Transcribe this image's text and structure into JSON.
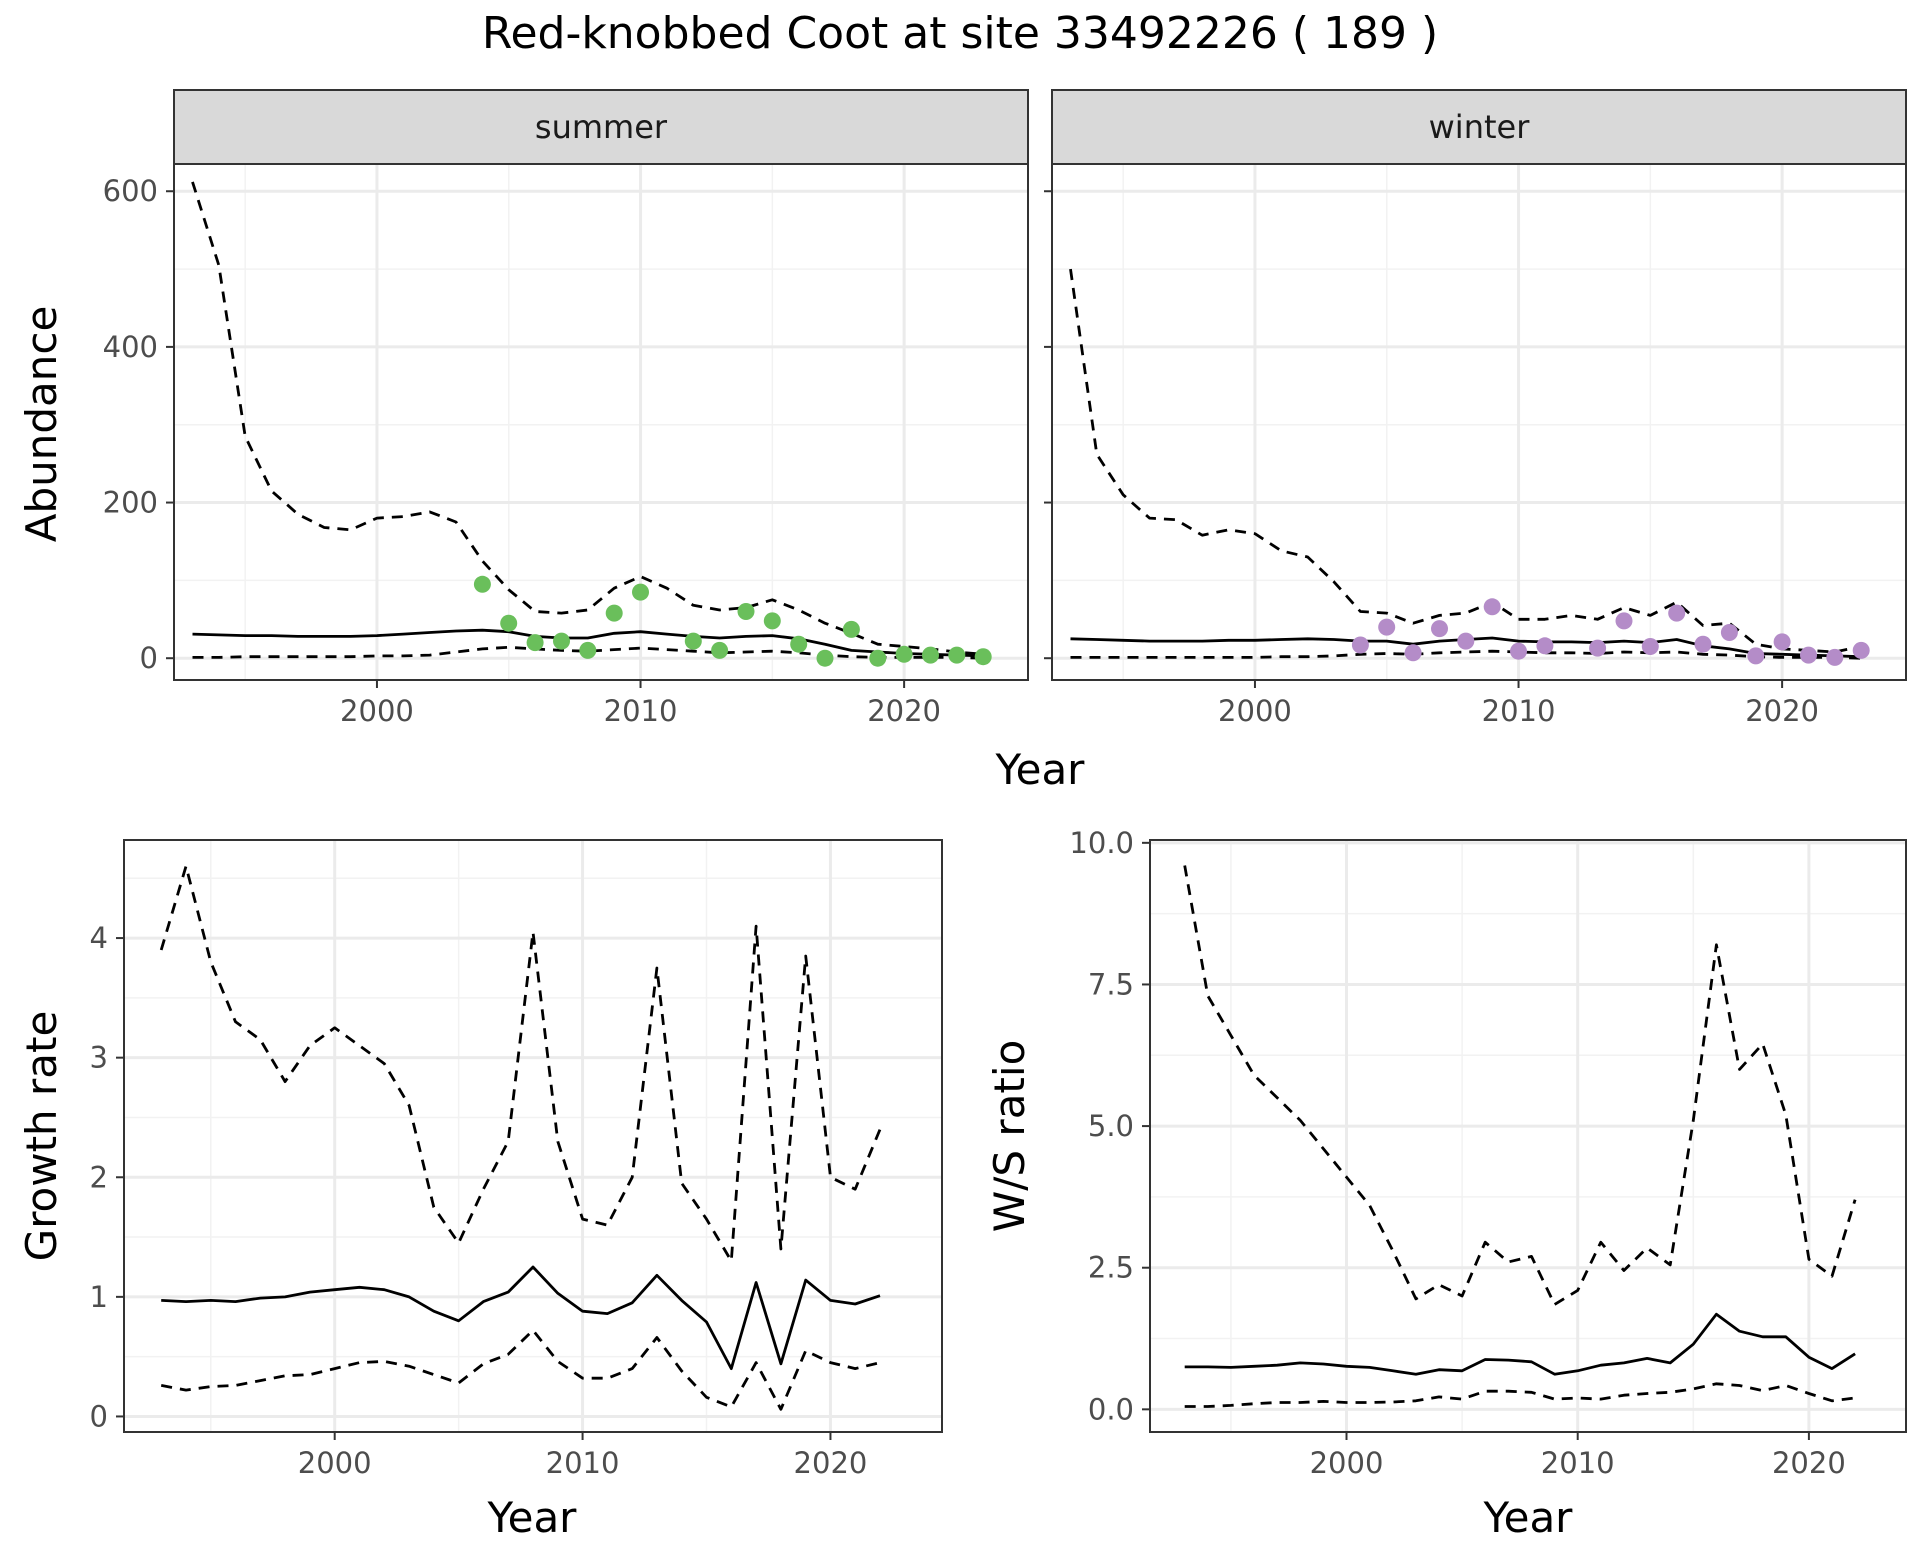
{
  "title": "Red-knobbed Coot at site 33492226 ( 189 )",
  "colors": {
    "summer_points": "#6ABF5B",
    "winter_points": "#B48CC8",
    "lines": "#000000",
    "grid_major": "#EBEBEB",
    "grid_minor": "#F2F2F2",
    "strip_bg": "#D9D9D9"
  },
  "chart_data": [
    {
      "type": "line",
      "panel": "summer",
      "facet_label": "summer",
      "xlabel": "Year",
      "ylabel": "Abundance",
      "xlim": [
        1992.3,
        2024.7
      ],
      "ylim": [
        -28,
        635
      ],
      "xticks": [
        2000,
        2010,
        2020
      ],
      "yticks": [
        0,
        200,
        400,
        600
      ],
      "grid": true,
      "x": [
        1993,
        1994,
        1995,
        1996,
        1997,
        1998,
        1999,
        2000,
        2001,
        2002,
        2003,
        2004,
        2005,
        2006,
        2007,
        2008,
        2009,
        2010,
        2011,
        2012,
        2013,
        2014,
        2015,
        2016,
        2017,
        2018,
        2019,
        2020,
        2021,
        2022,
        2023
      ],
      "series": [
        {
          "style": "dashed",
          "values": [
            612,
            505,
            285,
            215,
            185,
            168,
            165,
            180,
            182,
            188,
            175,
            125,
            88,
            60,
            58,
            62,
            90,
            105,
            90,
            68,
            62,
            65,
            75,
            62,
            45,
            32,
            18,
            15,
            12,
            8,
            5
          ]
        },
        {
          "style": "solid",
          "values": [
            31,
            30,
            29,
            29,
            28,
            28,
            28,
            29,
            31,
            33,
            35,
            36,
            34,
            28,
            26,
            26,
            32,
            34,
            31,
            28,
            26,
            28,
            29,
            25,
            18,
            10,
            8,
            6,
            5,
            4,
            3
          ]
        },
        {
          "style": "dashed",
          "values": [
            1,
            1,
            2,
            2,
            2,
            2,
            2,
            3,
            3,
            4,
            8,
            12,
            14,
            12,
            10,
            9,
            11,
            13,
            11,
            9,
            7,
            8,
            9,
            7,
            4,
            2,
            1,
            1,
            1,
            1,
            0
          ]
        }
      ],
      "points": {
        "x": [
          2004,
          2005,
          2006,
          2007,
          2008,
          2009,
          2010,
          2012,
          2013,
          2014,
          2015,
          2016,
          2017,
          2018,
          2019,
          2020,
          2021,
          2022,
          2023
        ],
        "y": [
          95,
          45,
          20,
          22,
          10,
          58,
          85,
          22,
          10,
          60,
          48,
          18,
          0,
          37,
          0,
          5,
          4,
          4,
          2
        ]
      }
    },
    {
      "type": "line",
      "panel": "winter",
      "facet_label": "winter",
      "xlabel": "Year",
      "ylabel": "Abundance",
      "xlim": [
        1992.3,
        2024.7
      ],
      "ylim": [
        -28,
        635
      ],
      "xticks": [
        2000,
        2010,
        2020
      ],
      "yticks": [
        0,
        200,
        400,
        600
      ],
      "grid": true,
      "x": [
        1993,
        1994,
        1995,
        1996,
        1997,
        1998,
        1999,
        2000,
        2001,
        2002,
        2003,
        2004,
        2005,
        2006,
        2007,
        2008,
        2009,
        2010,
        2011,
        2012,
        2013,
        2014,
        2015,
        2016,
        2017,
        2018,
        2019,
        2020,
        2021,
        2022,
        2023
      ],
      "series": [
        {
          "style": "dashed",
          "values": [
            500,
            262,
            210,
            180,
            178,
            158,
            165,
            160,
            138,
            130,
            98,
            60,
            58,
            45,
            55,
            58,
            72,
            50,
            50,
            55,
            50,
            65,
            55,
            72,
            42,
            45,
            18,
            12,
            10,
            8,
            15
          ]
        },
        {
          "style": "solid",
          "values": [
            25,
            24,
            23,
            22,
            22,
            22,
            23,
            23,
            24,
            25,
            24,
            22,
            22,
            18,
            22,
            24,
            26,
            22,
            21,
            21,
            20,
            22,
            20,
            24,
            16,
            12,
            6,
            5,
            4,
            3,
            2
          ]
        },
        {
          "style": "dashed",
          "values": [
            1,
            1,
            1,
            1,
            1,
            1,
            1,
            1,
            2,
            2,
            3,
            5,
            6,
            5,
            7,
            8,
            9,
            8,
            7,
            7,
            6,
            8,
            7,
            8,
            5,
            4,
            2,
            1,
            1,
            1,
            0
          ]
        }
      ],
      "points": {
        "x": [
          2004,
          2005,
          2006,
          2007,
          2008,
          2009,
          2010,
          2011,
          2013,
          2014,
          2015,
          2016,
          2017,
          2018,
          2019,
          2020,
          2021,
          2022,
          2023
        ],
        "y": [
          17,
          40,
          7,
          38,
          22,
          66,
          9,
          16,
          13,
          48,
          15,
          58,
          18,
          33,
          3,
          21,
          4,
          1,
          10
        ]
      }
    },
    {
      "type": "line",
      "panel": "growth",
      "xlabel": "Year",
      "ylabel": "Growth rate",
      "xlim": [
        1991.5,
        2024.5
      ],
      "ylim": [
        -0.13,
        4.82
      ],
      "xticks": [
        2000,
        2010,
        2020
      ],
      "yticks": [
        0,
        1,
        2,
        3,
        4
      ],
      "grid": true,
      "x": [
        1993,
        1994,
        1995,
        1996,
        1997,
        1998,
        1999,
        2000,
        2001,
        2002,
        2003,
        2004,
        2005,
        2006,
        2007,
        2008,
        2009,
        2010,
        2011,
        2012,
        2013,
        2014,
        2015,
        2016,
        2017,
        2018,
        2019,
        2020,
        2021,
        2022
      ],
      "series": [
        {
          "style": "dashed",
          "values": [
            3.9,
            4.6,
            3.8,
            3.3,
            3.15,
            2.8,
            3.1,
            3.25,
            3.1,
            2.95,
            2.6,
            1.75,
            1.45,
            1.9,
            2.3,
            4.05,
            2.3,
            1.65,
            1.6,
            2.0,
            3.75,
            1.95,
            1.65,
            1.3,
            4.1,
            1.4,
            3.85,
            2.0,
            1.9,
            2.4
          ]
        },
        {
          "style": "solid",
          "values": [
            0.97,
            0.96,
            0.97,
            0.96,
            0.99,
            1.0,
            1.04,
            1.06,
            1.08,
            1.06,
            1.0,
            0.88,
            0.8,
            0.96,
            1.04,
            1.25,
            1.03,
            0.88,
            0.86,
            0.95,
            1.18,
            0.97,
            0.79,
            0.4,
            1.12,
            0.44,
            1.14,
            0.97,
            0.94,
            1.01
          ]
        },
        {
          "style": "dashed",
          "values": [
            0.26,
            0.22,
            0.25,
            0.26,
            0.3,
            0.34,
            0.35,
            0.4,
            0.45,
            0.46,
            0.42,
            0.35,
            0.28,
            0.44,
            0.52,
            0.72,
            0.46,
            0.32,
            0.32,
            0.4,
            0.66,
            0.38,
            0.16,
            0.08,
            0.45,
            0.06,
            0.55,
            0.45,
            0.4,
            0.45
          ]
        }
      ]
    },
    {
      "type": "line",
      "panel": "ws_ratio",
      "xlabel": "Year",
      "ylabel": "W/S ratio",
      "xlim": [
        1991.5,
        2024.2
      ],
      "ylim": [
        -0.4,
        10.05
      ],
      "xticks": [
        2000,
        2010,
        2020
      ],
      "yticks": [
        0.0,
        2.5,
        5.0,
        7.5,
        10.0
      ],
      "ytick_labels": [
        "0.0",
        "2.5",
        "5.0",
        "7.5",
        "10.0"
      ],
      "grid": true,
      "x": [
        1993,
        1994,
        1995,
        1996,
        1997,
        1998,
        1999,
        2000,
        2001,
        2002,
        2003,
        2004,
        2005,
        2006,
        2007,
        2008,
        2009,
        2010,
        2011,
        2012,
        2013,
        2014,
        2015,
        2016,
        2017,
        2018,
        2019,
        2020,
        2021,
        2022
      ],
      "series": [
        {
          "style": "dashed",
          "values": [
            9.6,
            7.3,
            6.6,
            5.9,
            5.5,
            5.1,
            4.6,
            4.1,
            3.6,
            2.8,
            1.95,
            2.2,
            2.0,
            2.95,
            2.6,
            2.7,
            1.85,
            2.1,
            2.95,
            2.45,
            2.85,
            2.55,
            5.1,
            8.2,
            6.0,
            6.45,
            5.2,
            2.65,
            2.35,
            3.7
          ]
        },
        {
          "style": "solid",
          "values": [
            0.75,
            0.75,
            0.74,
            0.76,
            0.78,
            0.82,
            0.8,
            0.76,
            0.74,
            0.68,
            0.62,
            0.7,
            0.68,
            0.88,
            0.87,
            0.84,
            0.62,
            0.68,
            0.78,
            0.82,
            0.9,
            0.82,
            1.15,
            1.68,
            1.38,
            1.28,
            1.28,
            0.92,
            0.72,
            0.98
          ]
        },
        {
          "style": "dashed",
          "values": [
            0.05,
            0.05,
            0.07,
            0.1,
            0.12,
            0.12,
            0.14,
            0.12,
            0.12,
            0.13,
            0.15,
            0.22,
            0.18,
            0.32,
            0.32,
            0.3,
            0.18,
            0.2,
            0.18,
            0.25,
            0.28,
            0.3,
            0.36,
            0.45,
            0.42,
            0.33,
            0.42,
            0.28,
            0.15,
            0.2
          ]
        }
      ]
    }
  ]
}
